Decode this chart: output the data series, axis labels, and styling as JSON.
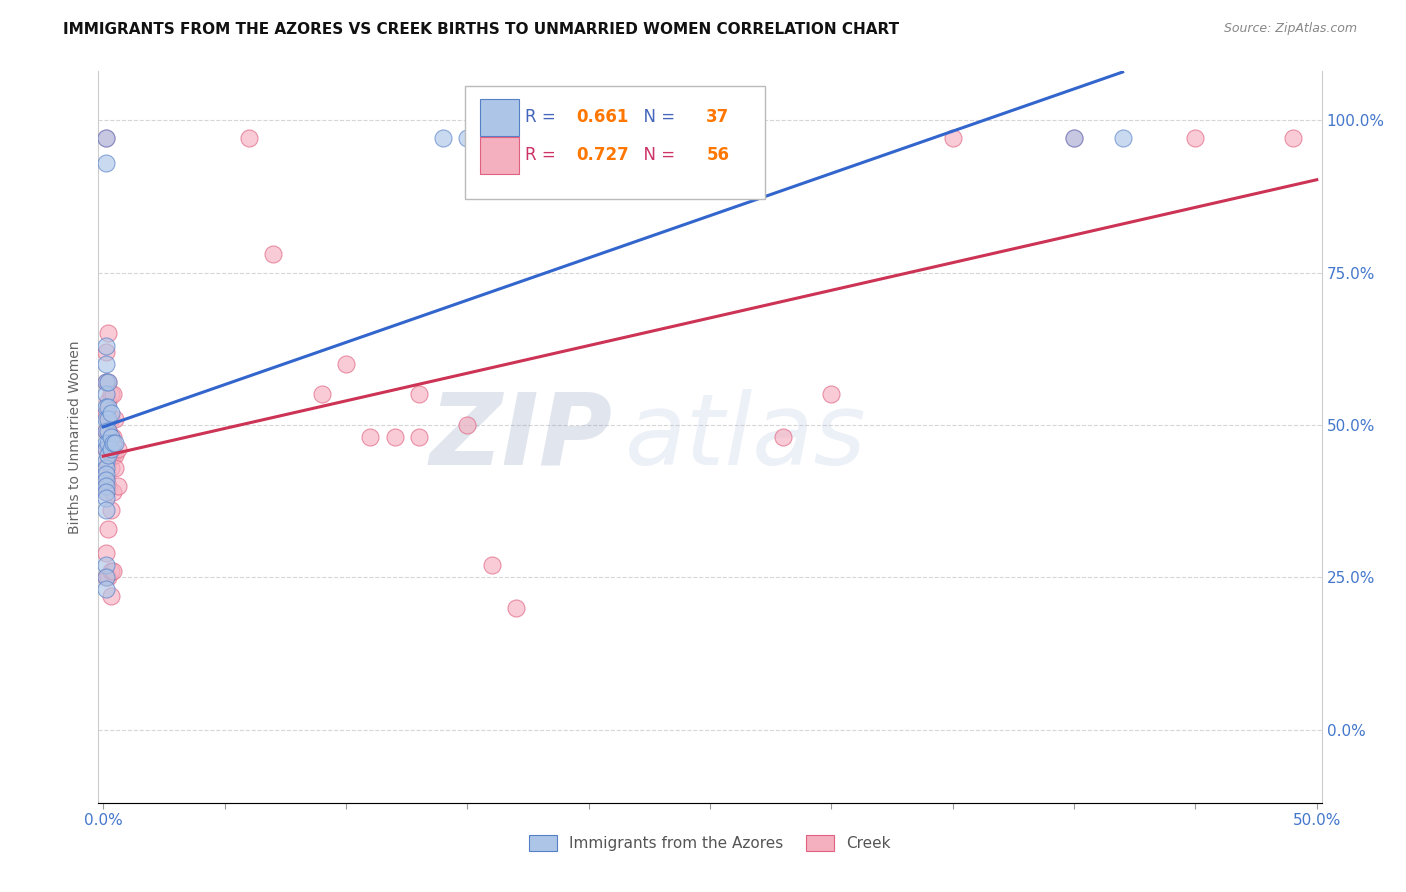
{
  "title": "IMMIGRANTS FROM THE AZORES VS CREEK BIRTHS TO UNMARRIED WOMEN CORRELATION CHART",
  "source": "Source: ZipAtlas.com",
  "ylabel": "Births to Unmarried Women",
  "legend1_r": "0.661",
  "legend1_n": "37",
  "legend2_r": "0.727",
  "legend2_n": "56",
  "legend1_label": "Immigrants from the Azores",
  "legend2_label": "Creek",
  "blue_fill": "#adc6e8",
  "blue_edge": "#5580c8",
  "pink_fill": "#f5b0c0",
  "pink_edge": "#e06080",
  "blue_line": "#3366cc",
  "pink_line": "#cc3355",
  "blue_dots": [
    [
      0.001,
      0.97
    ],
    [
      0.001,
      0.93
    ],
    [
      0.001,
      0.63
    ],
    [
      0.001,
      0.6
    ],
    [
      0.001,
      0.57
    ],
    [
      0.001,
      0.55
    ],
    [
      0.001,
      0.53
    ],
    [
      0.001,
      0.51
    ],
    [
      0.001,
      0.49
    ],
    [
      0.001,
      0.47
    ],
    [
      0.001,
      0.46
    ],
    [
      0.001,
      0.44
    ],
    [
      0.001,
      0.43
    ],
    [
      0.001,
      0.42
    ],
    [
      0.001,
      0.41
    ],
    [
      0.001,
      0.4
    ],
    [
      0.001,
      0.39
    ],
    [
      0.001,
      0.38
    ],
    [
      0.001,
      0.36
    ],
    [
      0.001,
      0.27
    ],
    [
      0.001,
      0.25
    ],
    [
      0.001,
      0.23
    ],
    [
      0.002,
      0.57
    ],
    [
      0.002,
      0.53
    ],
    [
      0.002,
      0.51
    ],
    [
      0.002,
      0.49
    ],
    [
      0.002,
      0.47
    ],
    [
      0.002,
      0.45
    ],
    [
      0.003,
      0.52
    ],
    [
      0.003,
      0.48
    ],
    [
      0.003,
      0.46
    ],
    [
      0.004,
      0.47
    ],
    [
      0.005,
      0.47
    ],
    [
      0.14,
      0.97
    ],
    [
      0.15,
      0.97
    ],
    [
      0.4,
      0.97
    ],
    [
      0.42,
      0.97
    ]
  ],
  "pink_dots": [
    [
      0.001,
      0.97
    ],
    [
      0.001,
      0.62
    ],
    [
      0.001,
      0.57
    ],
    [
      0.001,
      0.52
    ],
    [
      0.001,
      0.49
    ],
    [
      0.001,
      0.46
    ],
    [
      0.001,
      0.43
    ],
    [
      0.001,
      0.41
    ],
    [
      0.001,
      0.39
    ],
    [
      0.001,
      0.29
    ],
    [
      0.001,
      0.25
    ],
    [
      0.002,
      0.65
    ],
    [
      0.002,
      0.57
    ],
    [
      0.002,
      0.54
    ],
    [
      0.002,
      0.51
    ],
    [
      0.002,
      0.49
    ],
    [
      0.002,
      0.46
    ],
    [
      0.002,
      0.44
    ],
    [
      0.002,
      0.4
    ],
    [
      0.002,
      0.33
    ],
    [
      0.002,
      0.25
    ],
    [
      0.003,
      0.55
    ],
    [
      0.003,
      0.51
    ],
    [
      0.003,
      0.48
    ],
    [
      0.003,
      0.45
    ],
    [
      0.003,
      0.43
    ],
    [
      0.003,
      0.36
    ],
    [
      0.003,
      0.26
    ],
    [
      0.003,
      0.22
    ],
    [
      0.004,
      0.55
    ],
    [
      0.004,
      0.48
    ],
    [
      0.004,
      0.45
    ],
    [
      0.004,
      0.39
    ],
    [
      0.004,
      0.26
    ],
    [
      0.005,
      0.51
    ],
    [
      0.005,
      0.45
    ],
    [
      0.005,
      0.43
    ],
    [
      0.006,
      0.46
    ],
    [
      0.006,
      0.4
    ],
    [
      0.06,
      0.97
    ],
    [
      0.07,
      0.78
    ],
    [
      0.09,
      0.55
    ],
    [
      0.1,
      0.6
    ],
    [
      0.11,
      0.48
    ],
    [
      0.12,
      0.48
    ],
    [
      0.13,
      0.48
    ],
    [
      0.13,
      0.55
    ],
    [
      0.15,
      0.5
    ],
    [
      0.16,
      0.27
    ],
    [
      0.17,
      0.2
    ],
    [
      0.28,
      0.48
    ],
    [
      0.3,
      0.55
    ],
    [
      0.35,
      0.97
    ],
    [
      0.4,
      0.97
    ],
    [
      0.45,
      0.97
    ],
    [
      0.49,
      0.97
    ]
  ],
  "xlim": [
    -0.002,
    0.502
  ],
  "ylim": [
    -0.12,
    1.08
  ],
  "ytick_positions": [
    0.0,
    0.25,
    0.5,
    0.75,
    1.0
  ],
  "ytick_labels": [
    "0.0%",
    "25.0%",
    "50.0%",
    "75.0%",
    "100.0%"
  ],
  "xtick_labels_show": [
    "0.0%",
    "50.0%"
  ],
  "watermark_zip": "ZIP",
  "watermark_atlas": "atlas",
  "title_fontsize": 11
}
